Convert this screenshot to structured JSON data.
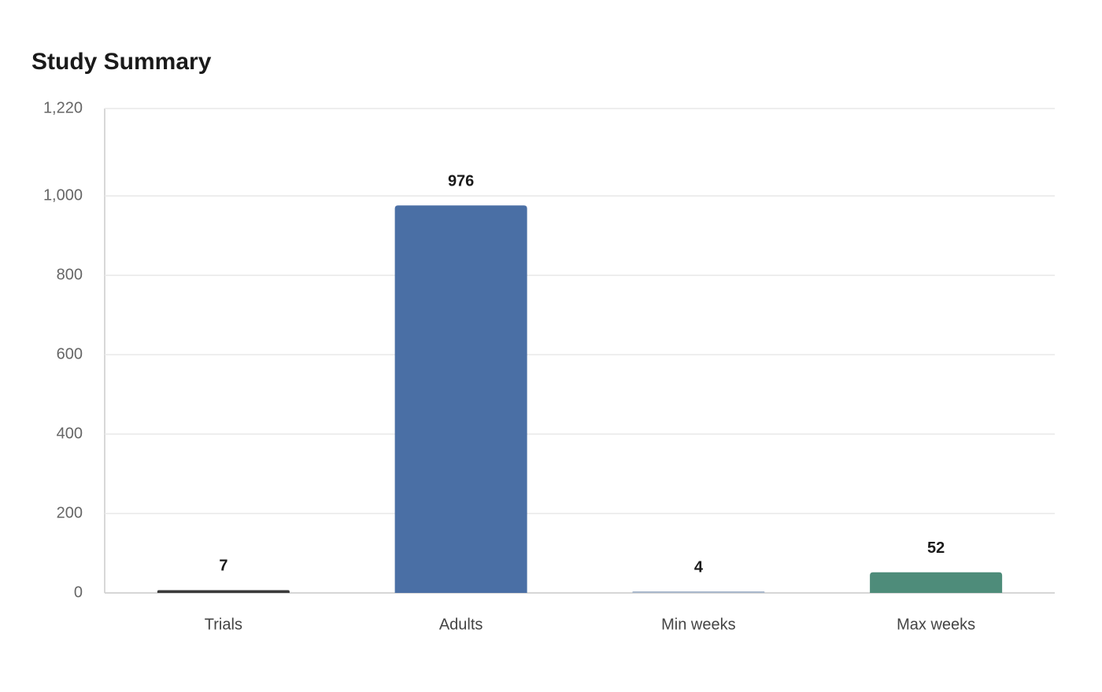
{
  "chart_data": {
    "type": "bar",
    "title": "Study Summary",
    "categories": [
      "Trials",
      "Adults",
      "Min weeks",
      "Max weeks"
    ],
    "values": [
      7,
      976,
      4,
      52
    ],
    "colors": [
      "#3a3a3a",
      "#4a6fa5",
      "#a9b8cc",
      "#4e8c7a"
    ],
    "ylim": [
      0,
      1220
    ],
    "yticks": [
      0,
      200,
      400,
      600,
      800,
      {
        "value": 1000,
        "label": "1,000"
      },
      {
        "value": 1220,
        "label": "1,220"
      }
    ],
    "grid": true
  }
}
